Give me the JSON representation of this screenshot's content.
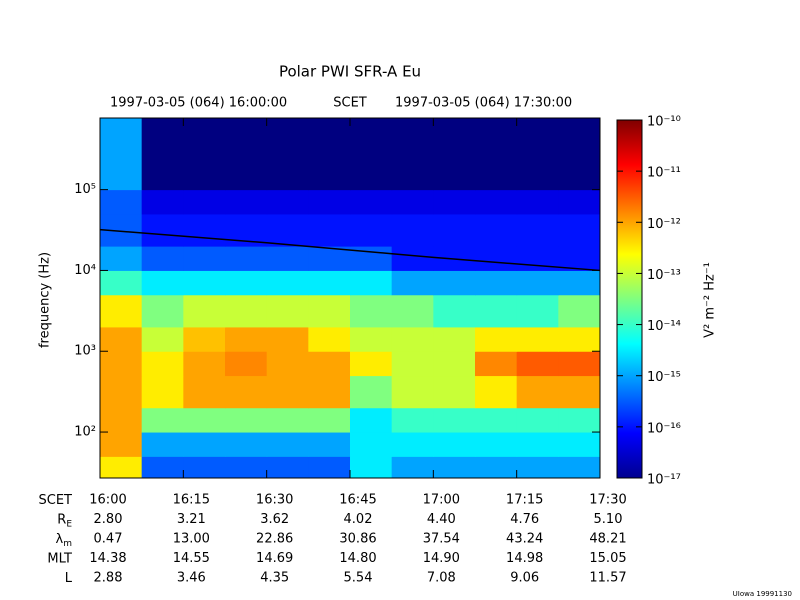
{
  "chart_data": {
    "type": "spectrogram",
    "title": "Polar PWI SFR-A Eu",
    "start_label": "1997-03-05 (064) 16:00:00",
    "time_label": "SCET",
    "end_label": "1997-03-05 (064) 17:30:00",
    "ylabel": "frequency (Hz)",
    "log_y": true,
    "xlim": [
      "16:00",
      "17:30"
    ],
    "ylim": [
      27,
      770000
    ],
    "yticks": [
      {
        "value": 100,
        "label": "10²"
      },
      {
        "value": 1000,
        "label": "10³"
      },
      {
        "value": 10000,
        "label": "10⁴"
      },
      {
        "value": 100000,
        "label": "10⁵"
      }
    ],
    "time_bins": [
      "16:00:00",
      "16:07:30",
      "16:15:00",
      "16:22:30",
      "16:30:00",
      "16:37:30",
      "16:45:00",
      "16:52:30",
      "17:00:00",
      "17:07:30",
      "17:15:00",
      "17:22:30",
      "17:30:00"
    ],
    "freq_bins": [
      27,
      50,
      100,
      200,
      500,
      1000,
      2000,
      5000,
      10000,
      20000,
      50000,
      100000,
      770000
    ],
    "z": [
      [
        -12.5,
        -15.5,
        -15.5,
        -15.5,
        -15.5,
        -15.5,
        -14.5,
        -15,
        -15,
        -15,
        -15,
        -15
      ],
      [
        -12,
        -15,
        -15,
        -15,
        -15,
        -15,
        -14.5,
        -14.5,
        -14.5,
        -14.5,
        -14.5,
        -14.5
      ],
      [
        -12,
        -13.5,
        -13.5,
        -13.5,
        -13.5,
        -13.5,
        -14.5,
        -14,
        -14,
        -14,
        -14,
        -14
      ],
      [
        -12,
        -12.5,
        -12,
        -12,
        -12,
        -12,
        -13.5,
        -13,
        -13,
        -12.5,
        -12,
        -12
      ],
      [
        -12,
        -12.5,
        -12,
        -11.8,
        -12,
        -12,
        -12.5,
        -13,
        -13,
        -11.8,
        -11.5,
        -11.5
      ],
      [
        -12,
        -13,
        -12.2,
        -12,
        -12,
        -12.5,
        -13,
        -13,
        -13,
        -12.5,
        -12.5,
        -12.5
      ],
      [
        -12.5,
        -13.5,
        -13,
        -13,
        -13,
        -13,
        -13.5,
        -13.5,
        -14,
        -14,
        -14,
        -13.5
      ],
      [
        -14,
        -14.5,
        -14.5,
        -14.5,
        -14.5,
        -14.5,
        -14.5,
        -15,
        -15,
        -15,
        -15,
        -15
      ],
      [
        -15,
        -15.5,
        -15.5,
        -15.5,
        -15.5,
        -15.5,
        -15.5,
        -16,
        -16,
        -16,
        -16,
        -16
      ],
      [
        -15.5,
        -16,
        -16,
        -16,
        -16,
        -16,
        -16,
        -16,
        -16,
        -16,
        -16,
        -16
      ],
      [
        -15.5,
        -16.3,
        -16.3,
        -16.3,
        -16.3,
        -16.3,
        -16.3,
        -16.3,
        -16.3,
        -16.3,
        -16.3,
        -16.3
      ],
      [
        -15,
        -17,
        -17,
        -17,
        -17,
        -17,
        -17,
        -17,
        -17,
        -17,
        -17,
        -17
      ]
    ],
    "line": {
      "color": "#000000",
      "x": [
        "16:00",
        "16:30",
        "17:00",
        "17:30"
      ],
      "y": [
        32000,
        22000,
        14500,
        10000
      ]
    },
    "colorbar": {
      "label": "V² m⁻² Hz⁻¹",
      "lim": [
        -17,
        -10
      ],
      "ticks": [
        {
          "value": -10,
          "label": "10⁻¹⁰"
        },
        {
          "value": -11,
          "label": "10⁻¹¹"
        },
        {
          "value": -12,
          "label": "10⁻¹²"
        },
        {
          "value": -13,
          "label": "10⁻¹³"
        },
        {
          "value": -14,
          "label": "10⁻¹⁴"
        },
        {
          "value": -15,
          "label": "10⁻¹⁵"
        },
        {
          "value": -16,
          "label": "10⁻¹⁶"
        },
        {
          "value": -17,
          "label": "10⁻¹⁷"
        }
      ]
    },
    "ephemeris": [
      {
        "label": "SCET",
        "values": [
          "16:00",
          "16:15",
          "16:30",
          "16:45",
          "17:00",
          "17:15",
          "17:30"
        ]
      },
      {
        "label": "R",
        "sub": "E",
        "values": [
          "2.80",
          "3.21",
          "3.62",
          "4.02",
          "4.40",
          "4.76",
          "5.10"
        ]
      },
      {
        "label": "λ",
        "sub": "m",
        "values": [
          "0.47",
          "13.00",
          "22.86",
          "30.86",
          "37.54",
          "43.24",
          "48.21"
        ]
      },
      {
        "label": "MLT",
        "values": [
          "14.38",
          "14.55",
          "14.69",
          "14.80",
          "14.90",
          "14.98",
          "15.05"
        ]
      },
      {
        "label": "L",
        "values": [
          "2.88",
          "3.46",
          "4.35",
          "5.54",
          "7.08",
          "9.06",
          "11.57"
        ]
      }
    ],
    "footer": "UIowa 19991130"
  }
}
